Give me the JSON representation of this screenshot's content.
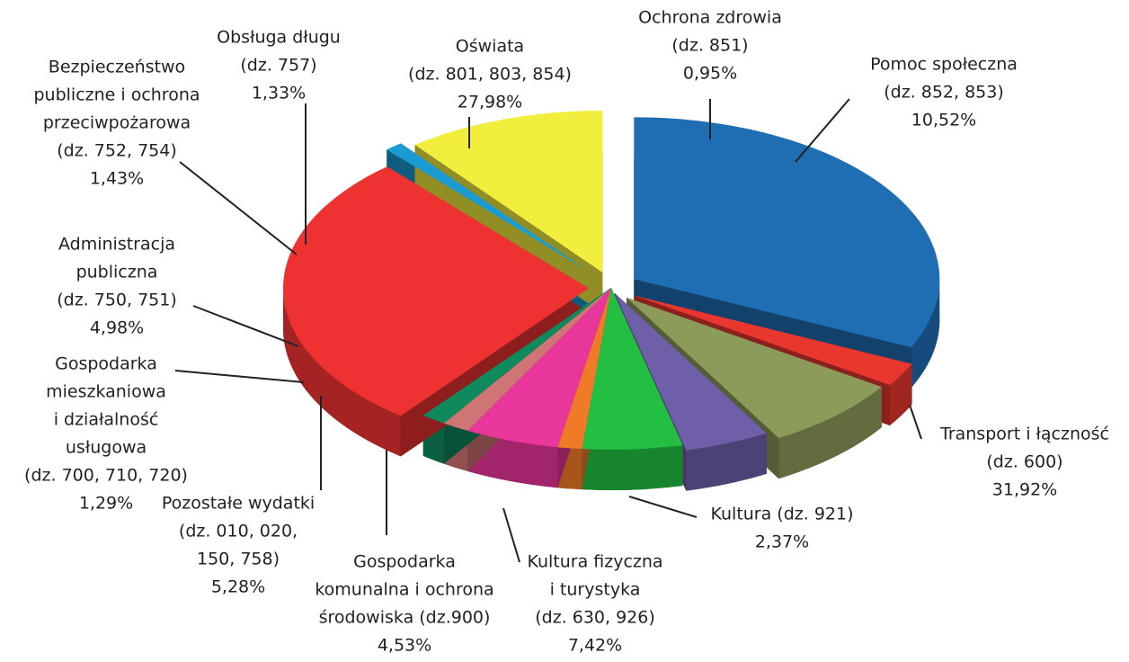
{
  "chart_data": {
    "type": "pie",
    "categories": [
      [
        "Transport i łączność",
        "(dz. 600)"
      ],
      [
        "Kultura (dz. 921)"
      ],
      [
        "Kultura fizyczna",
        "i turystyka",
        "(dz. 630,  926)"
      ],
      [
        "Gospodarka",
        "komunalna i ochrona",
        "środowiska (dz.900)"
      ],
      [
        "Pozostałe wydatki",
        "(dz. 010, 020,",
        "150, 758)"
      ],
      [
        "Gospodarka",
        "mieszkaniowa",
        "i działalność",
        "usługowa",
        "(dz. 700, 710, 720)"
      ],
      [
        "Administracja",
        "publiczna",
        "(dz. 750, 751)"
      ],
      [
        "Bezpieczeństwo",
        "publiczne i ochrona",
        "przeciwpożarowa",
        "(dz. 752, 754)"
      ],
      [
        "Obsługa długu",
        "(dz. 757)"
      ],
      [
        "Oświata",
        "(dz. 801, 803, 854)"
      ],
      [
        "Ochrona zdrowia",
        "(dz. 851)"
      ],
      [
        "Pomoc społeczna",
        "(dz. 852, 853)"
      ]
    ],
    "values": [
      31.92,
      2.37,
      7.42,
      4.53,
      5.28,
      1.29,
      4.98,
      1.43,
      1.33,
      27.98,
      0.95,
      10.52
    ],
    "value_labels": [
      "31,92%",
      "2,37%",
      "7,42%",
      "4,53%",
      "5,28%",
      "1,29%",
      "4,98%",
      "1,43%",
      "1,33%",
      "27,98%",
      "0,95%",
      "10,52%"
    ],
    "colors": [
      "#1f6db3",
      "#e8372f",
      "#8c9b5a",
      "#6f5fa8",
      "#22bf42",
      "#f07a28",
      "#e8369a",
      "#d07575",
      "#0f8a5c",
      "#ee3232",
      "#1a9bd2",
      "#f2ee3e"
    ]
  }
}
